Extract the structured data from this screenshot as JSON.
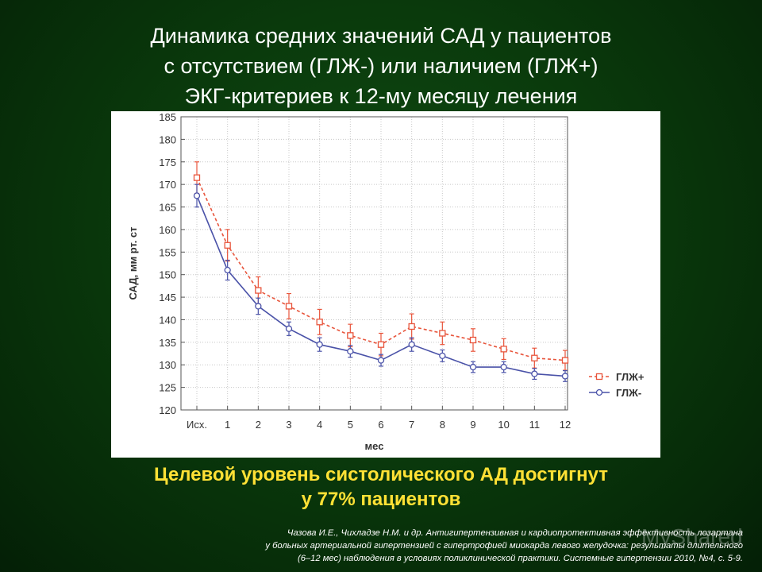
{
  "slide": {
    "title_lines": [
      "Динамика средних значений САД у пациентов",
      "с отсутствием (ГЛЖ-) или наличием (ГЛЖ+)",
      "ЭКГ-критериев к 12-му месяцу лечения"
    ],
    "subtitle_lines": [
      "Целевой уровень систолического АД достигнут",
      "у 77% пациентов"
    ],
    "reference_lines": [
      "Чазова И.Е., Чихладзе Н.М. и др. Антигипертензивная и кардиопротективная эффективность лозартана",
      "у больных артериальной гипертензией с гипертрофией миокарда левого желудочка: результаты длительного",
      "(6–12 мес) наблюдения в условиях поликлинической практики. Системные гипертензии 2010, №4, с. 5-9."
    ],
    "watermark": "MyShared",
    "colors": {
      "title": "#ffffff",
      "subtitle": "#ffe135",
      "glzh_plus": "#e8553c",
      "glzh_minus": "#4a52a8"
    }
  },
  "chart_data": {
    "type": "line",
    "title": "",
    "xlabel": "мес",
    "ylabel": "САД, мм рт. ст",
    "categories": [
      "Исх.",
      "1",
      "2",
      "3",
      "4",
      "5",
      "6",
      "7",
      "8",
      "9",
      "10",
      "11",
      "12"
    ],
    "ylim": [
      120,
      185
    ],
    "yticks": [
      120,
      125,
      130,
      135,
      140,
      145,
      150,
      155,
      160,
      165,
      170,
      175,
      180,
      185
    ],
    "grid": true,
    "legend_position": "right",
    "series": [
      {
        "name": "ГЛЖ+",
        "style": "dashed-square",
        "values": [
          171.5,
          156.5,
          146.5,
          143,
          139.5,
          136.5,
          134.5,
          138.5,
          137,
          135.5,
          133.5,
          131.5,
          131
        ],
        "err": [
          3.5,
          3.5,
          3,
          2.8,
          2.8,
          2.5,
          2.5,
          2.8,
          2.5,
          2.5,
          2.3,
          2.2,
          2.2
        ]
      },
      {
        "name": "ГЛЖ-",
        "style": "solid-circle",
        "values": [
          167.5,
          151,
          143,
          138,
          134.5,
          133,
          131,
          134.5,
          132,
          129.5,
          129.5,
          128,
          127.5
        ],
        "err": [
          2.5,
          2.2,
          1.8,
          1.5,
          1.5,
          1.3,
          1.3,
          1.5,
          1.3,
          1.2,
          1.2,
          1.2,
          1.2
        ]
      }
    ]
  }
}
